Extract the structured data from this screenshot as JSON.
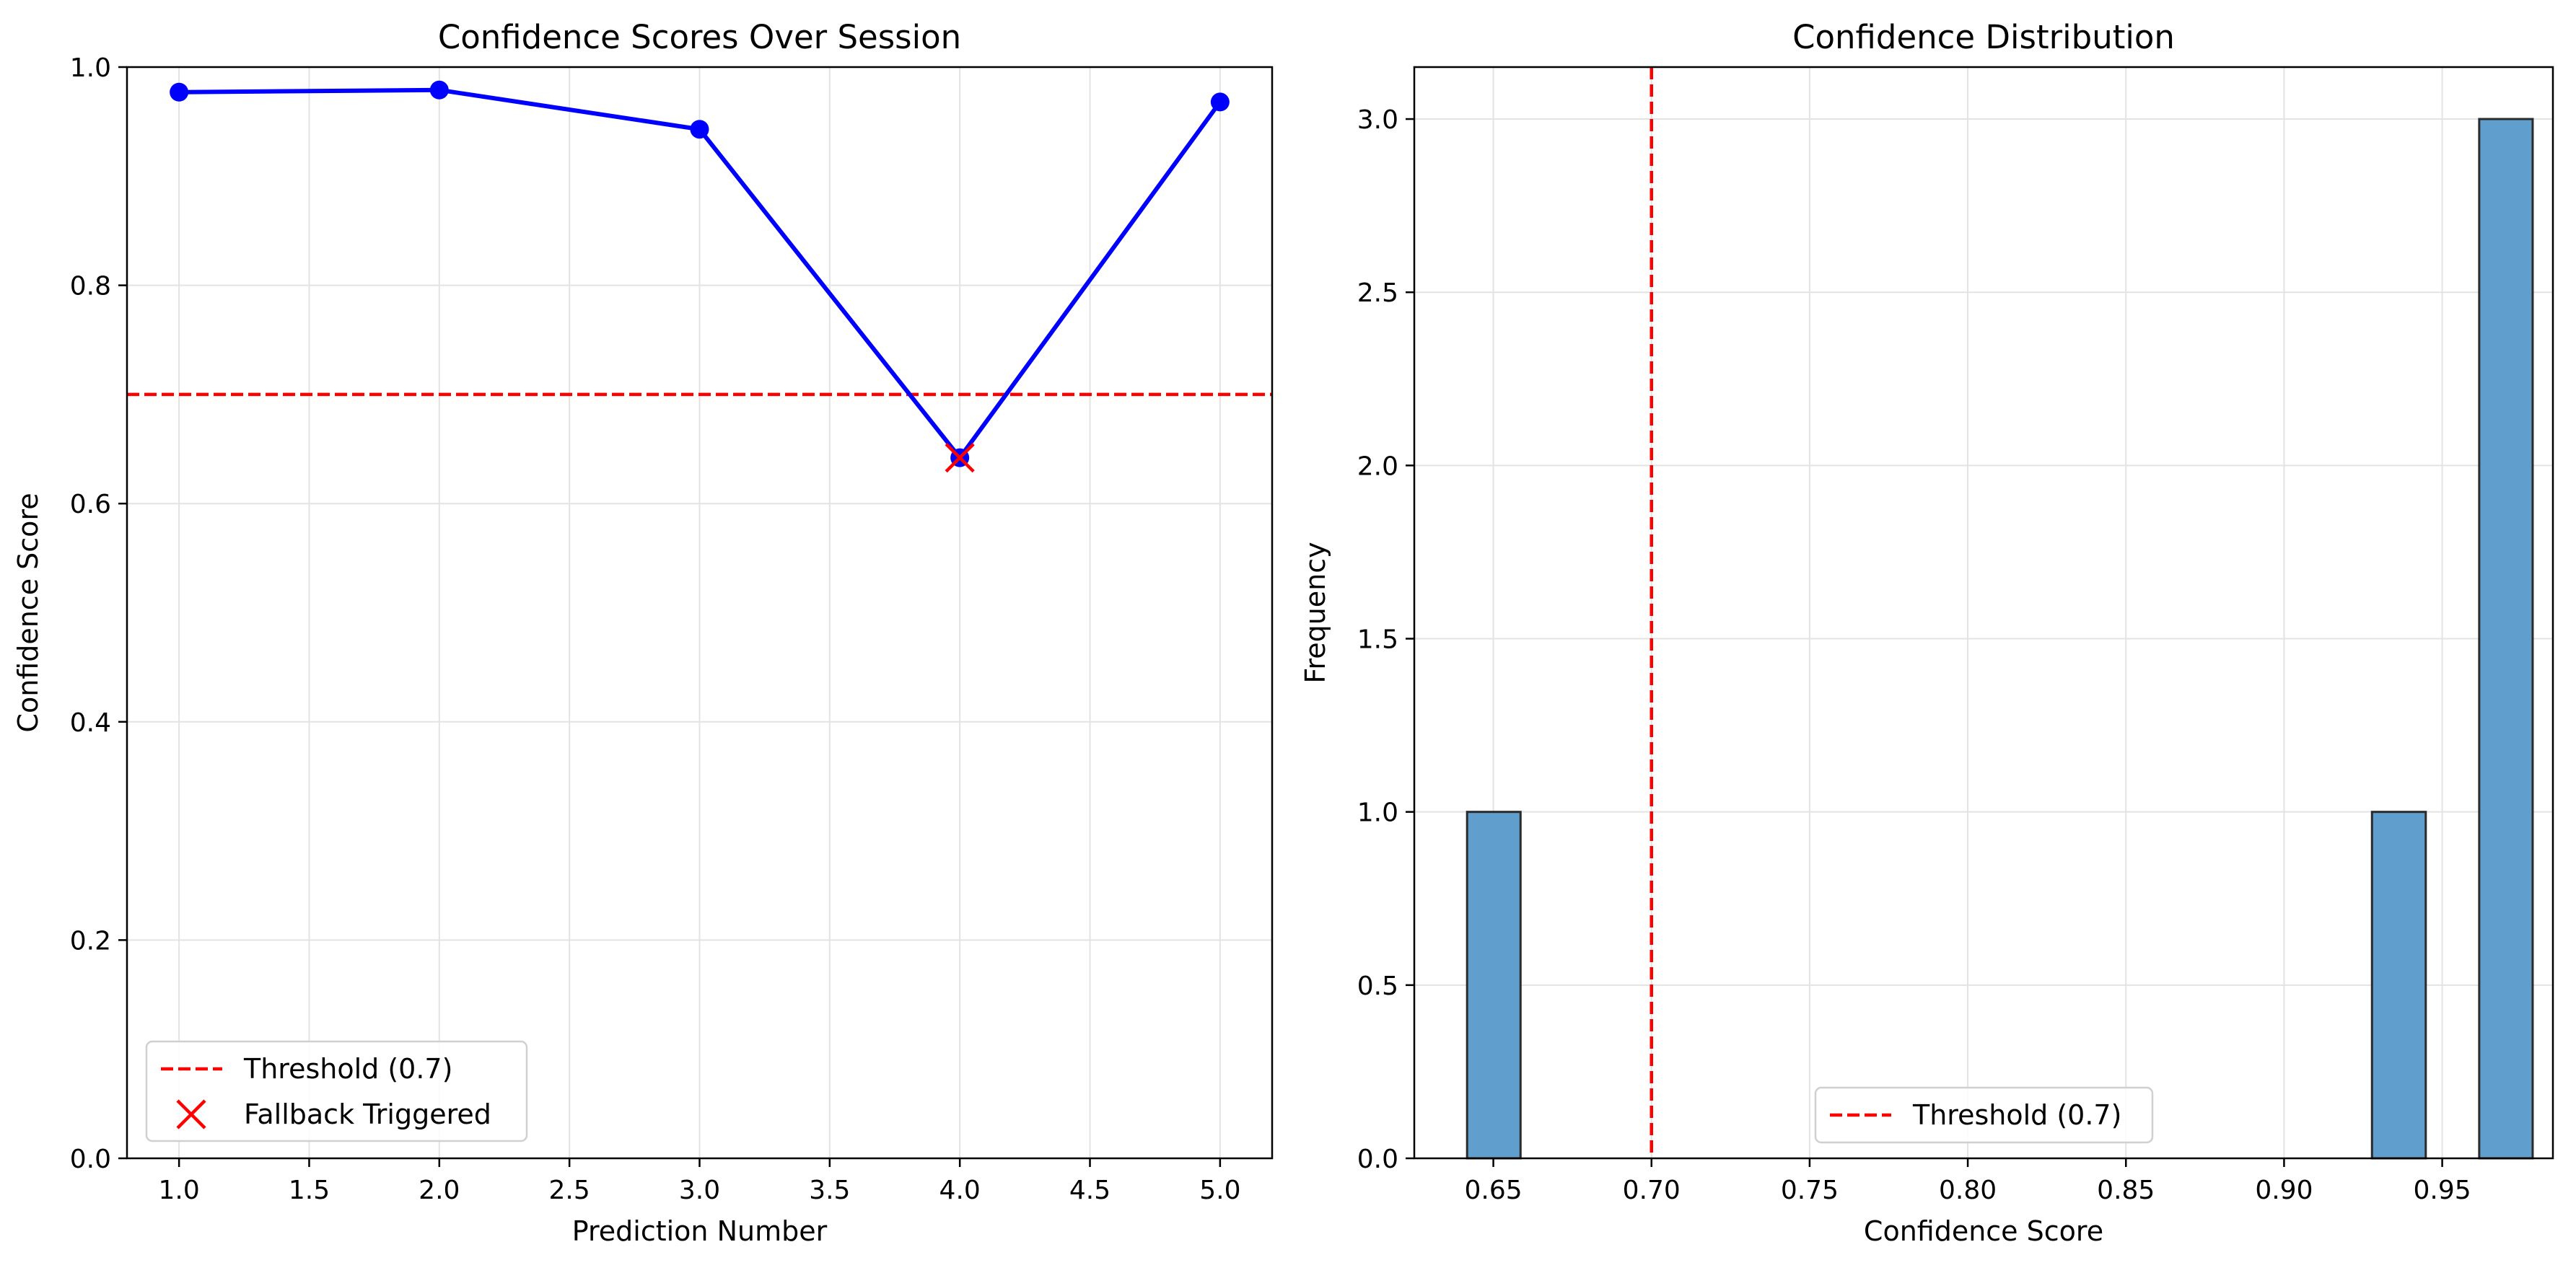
{
  "chart_data": [
    {
      "type": "line",
      "title": "Confidence Scores Over Session",
      "xlabel": "Prediction Number",
      "ylabel": "Confidence Score",
      "xlim": [
        0.8,
        5.2
      ],
      "ylim": [
        0.0,
        1.0
      ],
      "xticks": [
        1.0,
        1.5,
        2.0,
        2.5,
        3.0,
        3.5,
        4.0,
        4.5,
        5.0
      ],
      "yticks": [
        0.0,
        0.2,
        0.4,
        0.6,
        0.8,
        1.0
      ],
      "grid": true,
      "series": [
        {
          "x": [
            1,
            2,
            3,
            4,
            5
          ],
          "values": [
            0.977,
            0.979,
            0.943,
            0.642,
            0.968
          ],
          "color": "#0000ff",
          "marker": "circle"
        }
      ],
      "threshold": {
        "value": 0.7,
        "label": "Threshold (0.7)",
        "color": "#ff0000",
        "style": "dashed"
      },
      "fallback_points": {
        "label": "Fallback Triggered",
        "x": [
          4
        ],
        "y": [
          0.642
        ],
        "color": "#ff0000",
        "marker": "x"
      },
      "legend_placement": "lower-left"
    },
    {
      "type": "bar",
      "title": "Confidence Distribution",
      "xlabel": "Confidence Score",
      "ylabel": "Frequency",
      "xlim": [
        0.625,
        0.985
      ],
      "ylim": [
        0.0,
        3.15
      ],
      "xticks": [
        0.65,
        0.7,
        0.75,
        0.8,
        0.85,
        0.9,
        0.95
      ],
      "yticks": [
        0.0,
        0.5,
        1.0,
        1.5,
        2.0,
        2.5,
        3.0
      ],
      "grid": true,
      "bars": [
        {
          "x0": 0.6417,
          "x1": 0.6586,
          "value": 1
        },
        {
          "x0": 0.9278,
          "x1": 0.9448,
          "value": 1
        },
        {
          "x0": 0.9617,
          "x1": 0.9786,
          "value": 3
        }
      ],
      "bar_color": "#5f9ecd",
      "bar_edge_color": "#2b2b2b",
      "threshold": {
        "value": 0.7,
        "label": "Threshold (0.7)",
        "color": "#ff0000",
        "style": "dashed"
      },
      "legend_placement": "lower-center"
    }
  ]
}
